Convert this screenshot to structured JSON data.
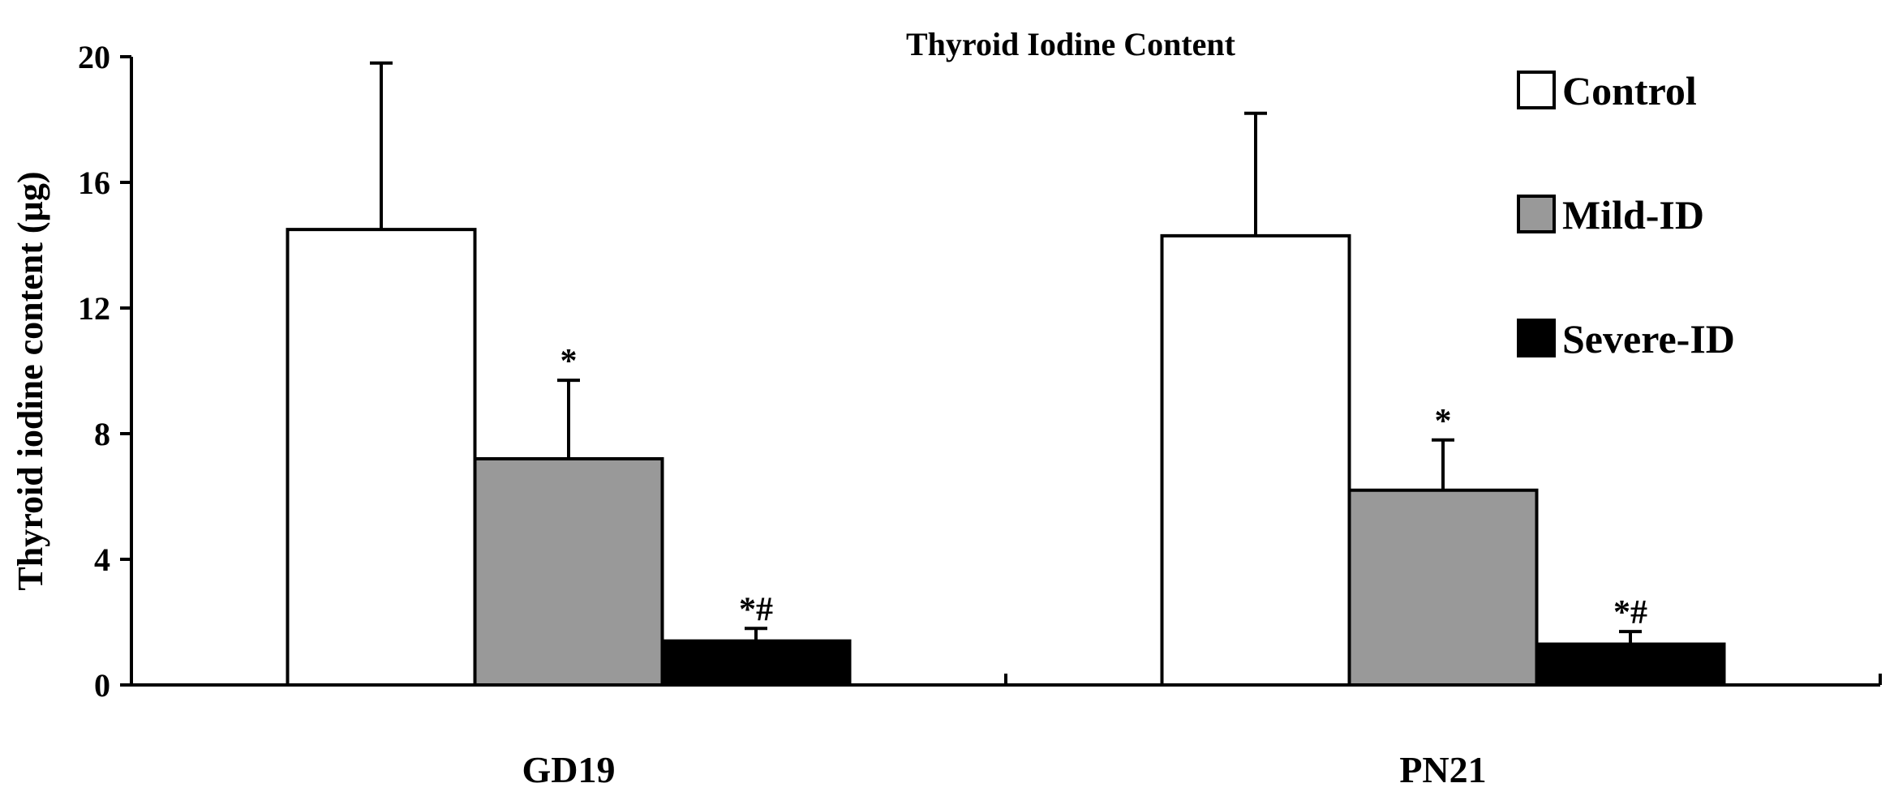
{
  "chart_data": {
    "type": "bar",
    "title": "Thyroid Iodine Content",
    "xlabel": "",
    "ylabel": "Thyroid iodine content (µg)",
    "ylim": [
      0,
      20
    ],
    "yticks": [
      "0",
      "4",
      "8",
      "12",
      "16",
      "20"
    ],
    "grid": false,
    "legend_position": "top-right",
    "categories": [
      "GD19",
      "PN21"
    ],
    "series": [
      {
        "name": "Control",
        "color": "#ffffff",
        "values": [
          14.5,
          14.3
        ],
        "errors": [
          5.3,
          3.9
        ],
        "annotations": [
          "",
          ""
        ]
      },
      {
        "name": "Mild-ID",
        "color": "#999999",
        "values": [
          7.2,
          6.2
        ],
        "errors": [
          2.5,
          1.6
        ],
        "annotations": [
          "*",
          "*"
        ]
      },
      {
        "name": "Severe-ID",
        "color": "#000000",
        "values": [
          1.4,
          1.3
        ],
        "errors": [
          0.4,
          0.4
        ],
        "annotations": [
          "*#",
          "*#"
        ]
      }
    ]
  }
}
